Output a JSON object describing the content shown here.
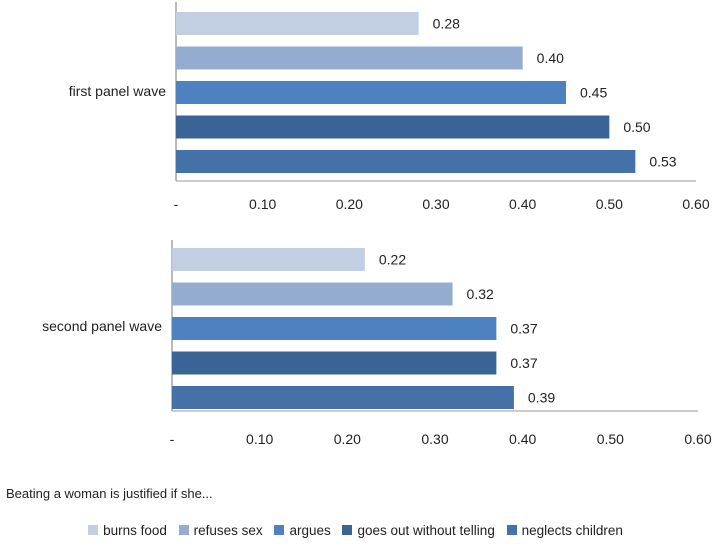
{
  "chart_data": [
    {
      "type": "bar",
      "orientation": "horizontal",
      "category_label": "first panel wave",
      "x_tick_labels": [
        "-",
        "0.10",
        "0.20",
        "0.30",
        "0.40",
        "0.50",
        "0.60"
      ],
      "xlim": [
        0,
        0.6
      ],
      "grid": false,
      "series": [
        {
          "name": "burns food",
          "value": 0.28,
          "label": "0.28"
        },
        {
          "name": "refuses sex",
          "value": 0.4,
          "label": "0.40"
        },
        {
          "name": "argues",
          "value": 0.45,
          "label": "0.45"
        },
        {
          "name": "goes out without telling",
          "value": 0.5,
          "label": "0.50"
        },
        {
          "name": "neglects children",
          "value": 0.53,
          "label": "0.53"
        }
      ]
    },
    {
      "type": "bar",
      "orientation": "horizontal",
      "category_label": "second panel wave",
      "x_tick_labels": [
        "-",
        "0.10",
        "0.20",
        "0.30",
        "0.40",
        "0.50",
        "0.60"
      ],
      "xlim": [
        0,
        0.6
      ],
      "grid": false,
      "series": [
        {
          "name": "burns food",
          "value": 0.22,
          "label": "0.22"
        },
        {
          "name": "refuses sex",
          "value": 0.32,
          "label": "0.32"
        },
        {
          "name": "argues",
          "value": 0.37,
          "label": "0.37"
        },
        {
          "name": "goes out without telling",
          "value": 0.37,
          "label": "0.37"
        },
        {
          "name": "neglects children",
          "value": 0.39,
          "label": "0.39"
        }
      ]
    }
  ],
  "note": "Beating a woman is justified if she...",
  "legend": {
    "placement": "bottom",
    "items": [
      {
        "name": "burns food",
        "color": "#c2cfe2"
      },
      {
        "name": "refuses sex",
        "color": "#93accf"
      },
      {
        "name": "argues",
        "color": "#4e81bf"
      },
      {
        "name": "goes out without telling",
        "color": "#3a6496"
      },
      {
        "name": "neglects children",
        "color": "#4472a8"
      }
    ]
  }
}
